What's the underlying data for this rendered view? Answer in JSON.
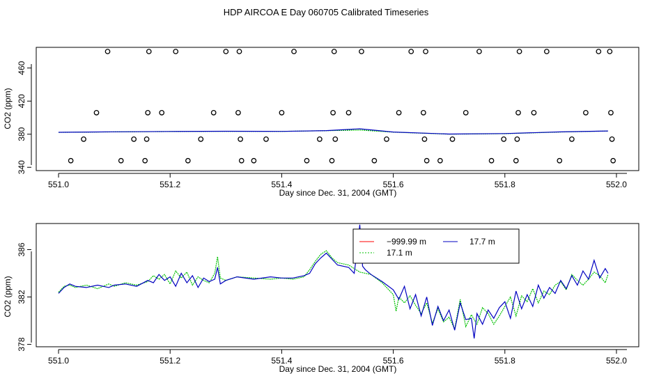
{
  "figure": {
    "title": "HDP AIRCOA E  Day 060705  Calibrated Timeseries"
  },
  "chart_data": [
    {
      "type": "scatter+line",
      "title": "",
      "xlabel": "Day since Dec. 31, 2004 (GMT)",
      "ylabel": "CO2 (ppm)",
      "xlim": [
        550.96,
        552.04
      ],
      "ylim": [
        336,
        485
      ],
      "xticks": [
        551.0,
        551.2,
        551.4,
        551.6,
        551.8,
        552.0
      ],
      "xtick_labels": [
        "551.0",
        "551.2",
        "551.4",
        "551.6",
        "551.8",
        "552.0"
      ],
      "yticks": [
        340,
        380,
        420,
        460
      ],
      "ytick_labels": [
        "340",
        "380",
        "420",
        "460"
      ],
      "calibration_points": {
        "name": "calibration",
        "x": [
          551.022,
          551.045,
          551.068,
          551.088,
          551.112,
          551.135,
          551.155,
          551.158,
          551.16,
          551.162,
          551.185,
          551.21,
          551.232,
          551.255,
          551.278,
          551.3,
          551.322,
          551.324,
          551.326,
          551.328,
          551.35,
          551.372,
          551.4,
          551.422,
          551.445,
          551.468,
          551.49,
          551.492,
          551.494,
          551.496,
          551.52,
          551.543,
          551.566,
          551.588,
          551.61,
          551.632,
          551.654,
          551.656,
          551.658,
          551.66,
          551.684,
          551.706,
          551.73,
          551.754,
          551.776,
          551.798,
          551.82,
          551.822,
          551.824,
          551.826,
          551.852,
          551.875,
          551.898,
          551.92,
          551.945,
          551.968,
          551.988,
          551.99,
          551.992,
          551.994
        ],
        "y": [
          348,
          374,
          406,
          480,
          348,
          374,
          348,
          374,
          406,
          480,
          406,
          480,
          348,
          374,
          406,
          480,
          406,
          480,
          374,
          348,
          348,
          374,
          406,
          480,
          348,
          374,
          348,
          406,
          480,
          374,
          406,
          480,
          348,
          374,
          406,
          480,
          406,
          374,
          480,
          348,
          348,
          374,
          406,
          480,
          348,
          374,
          348,
          374,
          406,
          480,
          406,
          480,
          348,
          374,
          406,
          480,
          480,
          406,
          374,
          348
        ]
      },
      "series": [
        {
          "name": "17.1 m",
          "color": "#00c000",
          "x": [
            551.0,
            551.1,
            551.2,
            551.3,
            551.4,
            551.48,
            551.54,
            551.6,
            551.7,
            551.8,
            551.9,
            551.985
          ],
          "y": [
            382.2,
            382.8,
            383.2,
            383.5,
            383.4,
            384.2,
            385.0,
            382.5,
            380.0,
            380.6,
            382.6,
            383.8
          ]
        },
        {
          "name": "17.7 m",
          "color": "#0000c0",
          "x": [
            551.0,
            551.1,
            551.2,
            551.3,
            551.4,
            551.48,
            551.54,
            551.6,
            551.7,
            551.8,
            551.9,
            551.985
          ],
          "y": [
            382.3,
            382.9,
            383.3,
            383.6,
            383.4,
            384.3,
            386.5,
            382.6,
            380.2,
            380.8,
            382.8,
            383.9
          ]
        }
      ]
    },
    {
      "type": "line",
      "title": "",
      "xlabel": "Day since Dec. 31, 2004 (GMT)",
      "ylabel": "CO2 (ppm)",
      "xlim": [
        550.96,
        552.04
      ],
      "ylim": [
        377.8,
        388.2
      ],
      "xticks": [
        551.0,
        551.2,
        551.4,
        551.6,
        551.8,
        552.0
      ],
      "xtick_labels": [
        "551.0",
        "551.2",
        "551.4",
        "551.6",
        "551.8",
        "552.0"
      ],
      "yticks": [
        378,
        382,
        386
      ],
      "ytick_labels": [
        "378",
        "382",
        "386"
      ],
      "legend": {
        "placement": "top-right",
        "entries": [
          {
            "label": "−999.99 m",
            "color": "#ff0000"
          },
          {
            "label": "17.7 m",
            "color": "#0000c0"
          },
          {
            "label": "17.1 m",
            "color": "#00c000"
          }
        ]
      },
      "series": [
        {
          "name": "17.1 m",
          "color": "#00c000",
          "x": [
            551.0,
            551.01,
            551.02,
            551.03,
            551.05,
            551.07,
            551.09,
            551.1,
            551.12,
            551.14,
            551.16,
            551.17,
            551.18,
            551.19,
            551.2,
            551.21,
            551.22,
            551.23,
            551.24,
            551.25,
            551.26,
            551.27,
            551.28,
            551.285,
            551.29,
            551.3,
            551.32,
            551.35,
            551.38,
            551.4,
            551.42,
            551.44,
            551.45,
            551.46,
            551.47,
            551.48,
            551.49,
            551.5,
            551.52,
            551.54,
            551.56,
            551.58,
            551.6,
            551.605,
            551.61,
            551.62,
            551.63,
            551.64,
            551.65,
            551.66,
            551.67,
            551.68,
            551.69,
            551.7,
            551.71,
            551.72,
            551.73,
            551.74,
            551.75,
            551.76,
            551.77,
            551.78,
            551.79,
            551.8,
            551.81,
            551.82,
            551.83,
            551.84,
            551.85,
            551.86,
            551.87,
            551.88,
            551.89,
            551.9,
            551.91,
            551.92,
            551.93,
            551.94,
            551.95,
            551.96,
            551.97,
            551.98,
            551.985
          ],
          "y": [
            382.4,
            382.9,
            383.0,
            382.8,
            383.0,
            382.7,
            383.1,
            382.9,
            383.2,
            383.0,
            383.3,
            383.8,
            383.5,
            383.9,
            383.1,
            384.2,
            383.6,
            384.1,
            383.0,
            383.7,
            383.4,
            383.2,
            384.0,
            385.4,
            383.6,
            383.4,
            383.7,
            383.6,
            383.5,
            383.6,
            383.5,
            383.7,
            384.3,
            385.0,
            385.6,
            385.9,
            385.3,
            384.9,
            384.7,
            384.1,
            383.9,
            383.2,
            382.2,
            380.8,
            382.0,
            381.5,
            382.1,
            381.3,
            380.6,
            381.5,
            379.8,
            381.0,
            379.9,
            380.3,
            379.3,
            381.8,
            379.5,
            380.5,
            379.7,
            381.1,
            380.6,
            379.7,
            380.4,
            381.2,
            382.0,
            380.4,
            382.1,
            381.6,
            382.7,
            381.5,
            382.5,
            382.2,
            383.0,
            383.3,
            382.6,
            383.9,
            383.4,
            383.0,
            383.5,
            384.1,
            383.8,
            383.2,
            383.9
          ]
        },
        {
          "name": "17.7 m",
          "color": "#0000c0",
          "x": [
            551.0,
            551.01,
            551.02,
            551.03,
            551.05,
            551.07,
            551.09,
            551.1,
            551.12,
            551.14,
            551.16,
            551.17,
            551.18,
            551.19,
            551.2,
            551.21,
            551.22,
            551.23,
            551.24,
            551.25,
            551.26,
            551.27,
            551.28,
            551.285,
            551.29,
            551.3,
            551.32,
            551.35,
            551.38,
            551.4,
            551.42,
            551.44,
            551.45,
            551.46,
            551.47,
            551.48,
            551.49,
            551.5,
            551.52,
            551.53,
            551.535,
            551.54,
            551.545,
            551.55,
            551.56,
            551.58,
            551.6,
            551.61,
            551.62,
            551.63,
            551.64,
            551.65,
            551.66,
            551.67,
            551.68,
            551.69,
            551.7,
            551.71,
            551.72,
            551.73,
            551.74,
            551.745,
            551.75,
            551.76,
            551.77,
            551.78,
            551.79,
            551.8,
            551.81,
            551.82,
            551.83,
            551.84,
            551.85,
            551.86,
            551.87,
            551.88,
            551.89,
            551.9,
            551.91,
            551.92,
            551.93,
            551.94,
            551.95,
            551.96,
            551.97,
            551.98,
            551.985
          ],
          "y": [
            382.3,
            382.8,
            383.1,
            382.9,
            382.8,
            383.0,
            382.8,
            383.0,
            383.1,
            382.9,
            383.4,
            383.2,
            383.9,
            383.4,
            383.7,
            382.9,
            384.0,
            383.2,
            383.8,
            382.8,
            383.6,
            383.3,
            383.5,
            384.5,
            383.1,
            383.4,
            383.7,
            383.5,
            383.7,
            383.6,
            383.6,
            383.8,
            384.0,
            384.8,
            385.3,
            385.7,
            385.2,
            384.7,
            384.5,
            384.0,
            385.8,
            388.1,
            384.6,
            384.3,
            383.9,
            383.3,
            382.6,
            381.8,
            382.9,
            381.0,
            382.2,
            380.4,
            382.0,
            379.6,
            381.2,
            380.0,
            380.9,
            379.2,
            381.5,
            380.1,
            380.2,
            378.5,
            380.6,
            379.7,
            380.9,
            380.2,
            381.1,
            381.6,
            380.2,
            382.5,
            381.0,
            382.2,
            381.2,
            383.0,
            381.9,
            382.8,
            382.3,
            383.4,
            382.7,
            383.8,
            383.0,
            384.2,
            383.5,
            385.1,
            383.6,
            384.4,
            384.0
          ]
        }
      ]
    }
  ]
}
